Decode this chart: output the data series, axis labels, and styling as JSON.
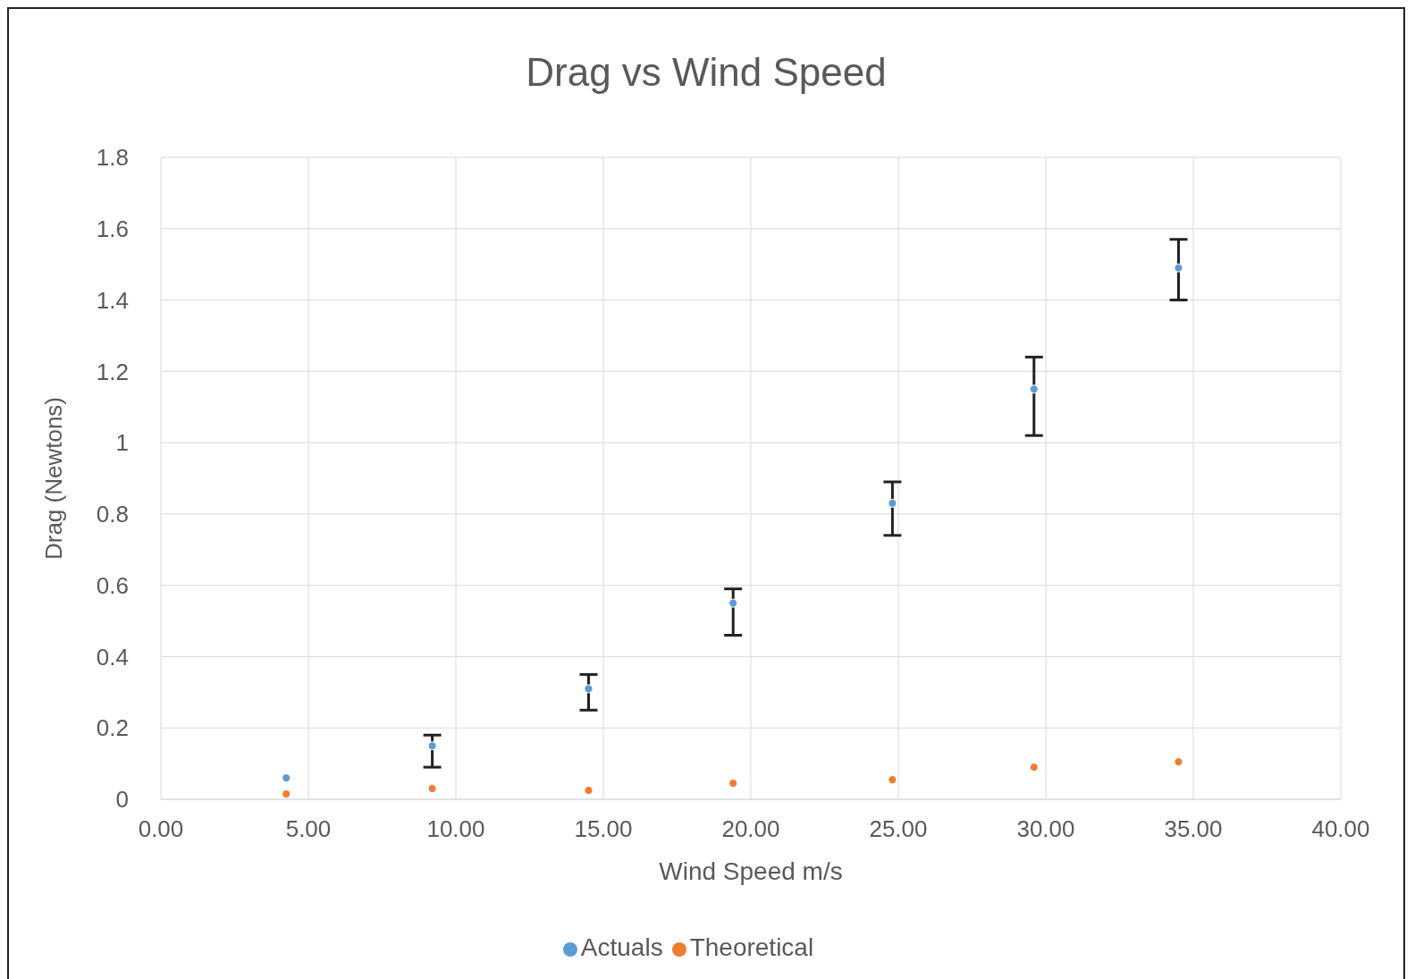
{
  "chart_data": {
    "type": "scatter",
    "title": "Drag vs Wind  Speed",
    "xlabel": "Wind Speed m/s",
    "ylabel": "Drag (Newtons)",
    "xlim": [
      0,
      40
    ],
    "xticks": [
      {
        "value": 0,
        "label": "0.00"
      },
      {
        "value": 5,
        "label": "5.00"
      },
      {
        "value": 10,
        "label": "10.00"
      },
      {
        "value": 15,
        "label": "15.00"
      },
      {
        "value": 20,
        "label": "20.00"
      },
      {
        "value": 25,
        "label": "25.00"
      },
      {
        "value": 30,
        "label": "30.00"
      },
      {
        "value": 35,
        "label": "35.00"
      },
      {
        "value": 40,
        "label": "40.00"
      }
    ],
    "ylim": [
      0,
      1.8
    ],
    "yticks": [
      0,
      0.2,
      0.4,
      0.6,
      0.8,
      1,
      1.2,
      1.4,
      1.6,
      1.8
    ],
    "grid": true,
    "legend": "bottom",
    "marker": "circle",
    "series": [
      {
        "name": "Actuals",
        "color": "#5b9bd5",
        "x": [
          4.25,
          9.2,
          14.5,
          19.4,
          24.8,
          29.6,
          34.5
        ],
        "values": [
          0.06,
          0.15,
          0.31,
          0.55,
          0.83,
          1.15,
          1.49
        ],
        "errors": [
          null,
          [
            0.09,
            0.18
          ],
          [
            0.25,
            0.35
          ],
          [
            0.46,
            0.59
          ],
          [
            0.74,
            0.89
          ],
          [
            1.02,
            1.24
          ],
          [
            1.4,
            1.57
          ]
        ]
      },
      {
        "name": "Theoretical",
        "color": "#ed7d31",
        "x": [
          4.25,
          9.2,
          14.5,
          19.4,
          24.8,
          29.6,
          34.5
        ],
        "values": [
          0.015,
          0.03,
          0.025,
          0.045,
          0.055,
          0.09,
          0.105
        ]
      }
    ]
  }
}
